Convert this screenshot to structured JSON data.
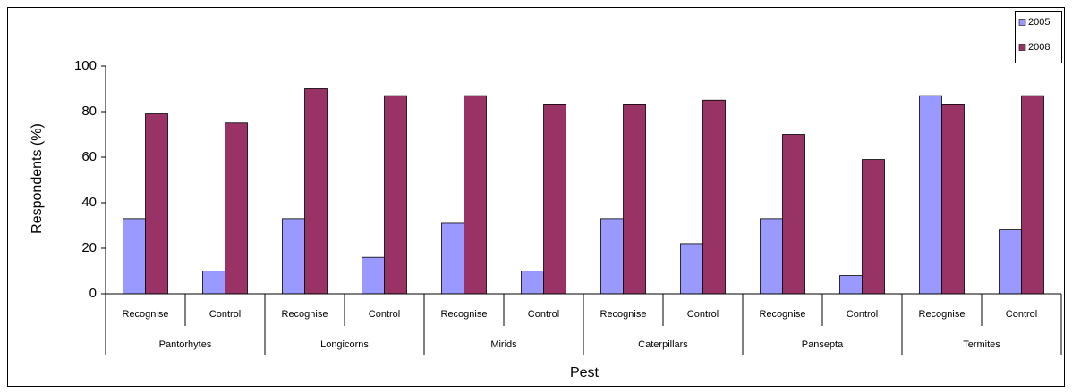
{
  "chart_data": {
    "type": "bar",
    "categories": [
      "Recognise",
      "Control",
      "Recognise",
      "Control",
      "Recognise",
      "Control",
      "Recognise",
      "Control",
      "Recognise",
      "Control",
      "Recognise",
      "Control"
    ],
    "groups": [
      "Pantorhytes",
      "Longicorns",
      "Mirids",
      "Caterpillars",
      "Pansepta",
      "Termites"
    ],
    "series": [
      {
        "name": "2005",
        "color": "#9999ff",
        "values": [
          33,
          10,
          33,
          16,
          31,
          10,
          33,
          22,
          33,
          8,
          87,
          28
        ]
      },
      {
        "name": "2008",
        "color": "#993366",
        "values": [
          79,
          75,
          90,
          87,
          87,
          83,
          83,
          85,
          70,
          59,
          83,
          87
        ]
      }
    ],
    "x_label": "Pest",
    "y_label": "Respondents (%)",
    "ylim": [
      0,
      100
    ],
    "yticks": [
      0,
      20,
      40,
      60,
      80,
      100
    ],
    "legend": "top-right"
  }
}
